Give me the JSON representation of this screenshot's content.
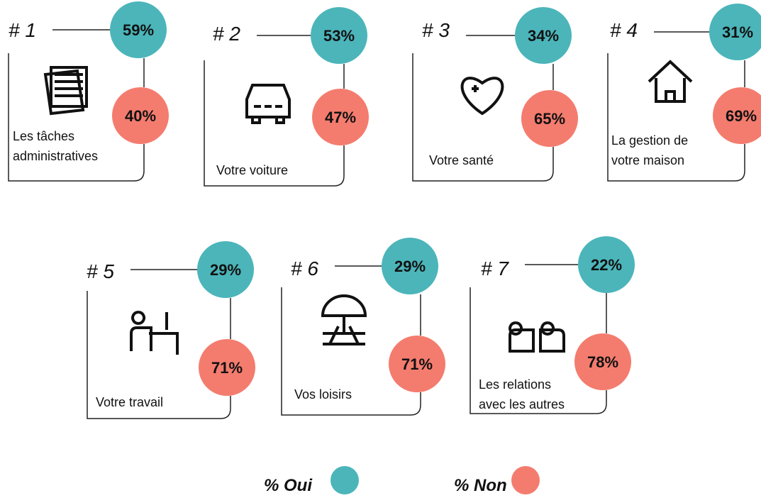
{
  "items": [
    {
      "rank": "# 1",
      "oui": "59%",
      "non": "40%",
      "label": [
        "Les tâches",
        "administratives"
      ]
    },
    {
      "rank": "# 2",
      "oui": "53%",
      "non": "47%",
      "label": [
        "Votre voiture"
      ]
    },
    {
      "rank": "# 3",
      "oui": "34%",
      "non": "65%",
      "label": [
        "Votre santé"
      ]
    },
    {
      "rank": "# 4",
      "oui": "31%",
      "non": "69%",
      "label": [
        "La gestion de",
        "votre maison"
      ]
    },
    {
      "rank": "# 5",
      "oui": "29%",
      "non": "71%",
      "label": [
        "Votre travail"
      ]
    },
    {
      "rank": "# 6",
      "oui": "29%",
      "non": "71%",
      "label": [
        "Vos loisirs"
      ]
    },
    {
      "rank": "# 7",
      "oui": "22%",
      "non": "78%",
      "label": [
        "Les relations",
        "avec les autres"
      ]
    }
  ],
  "legend": {
    "oui": "% Oui",
    "non": "% Non"
  }
}
